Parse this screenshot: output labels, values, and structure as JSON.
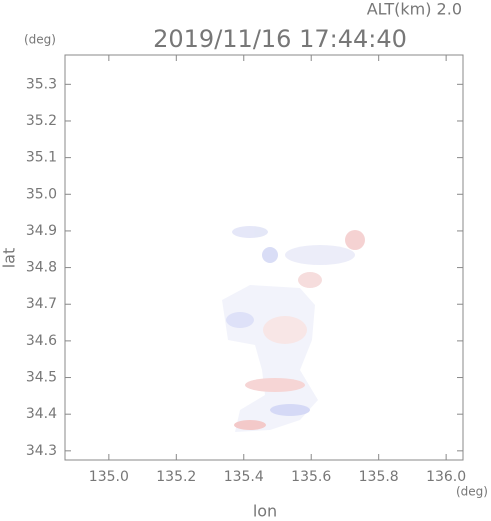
{
  "chart_data": {
    "type": "map",
    "title": "2019/11/16 17:44:40",
    "subtitle": "ALT(km) 2.0",
    "y_unit": "(deg)",
    "x_unit": "(deg)",
    "ylabel": "lat",
    "xlabel": "lon",
    "xlim": [
      134.87,
      136.05
    ],
    "ylim": [
      34.275,
      35.38
    ],
    "xticks": [
      {
        "value": 135,
        "label": "135.0"
      },
      135.2,
      135.4,
      135.6,
      135.8,
      {
        "value": 136,
        "label": "136.0"
      }
    ],
    "yticks": [
      34.3,
      34.4,
      34.5,
      34.6,
      34.7,
      34.8,
      34.9,
      {
        "value": 35,
        "label": "35.0"
      },
      35.1,
      35.2,
      35.3
    ]
  }
}
